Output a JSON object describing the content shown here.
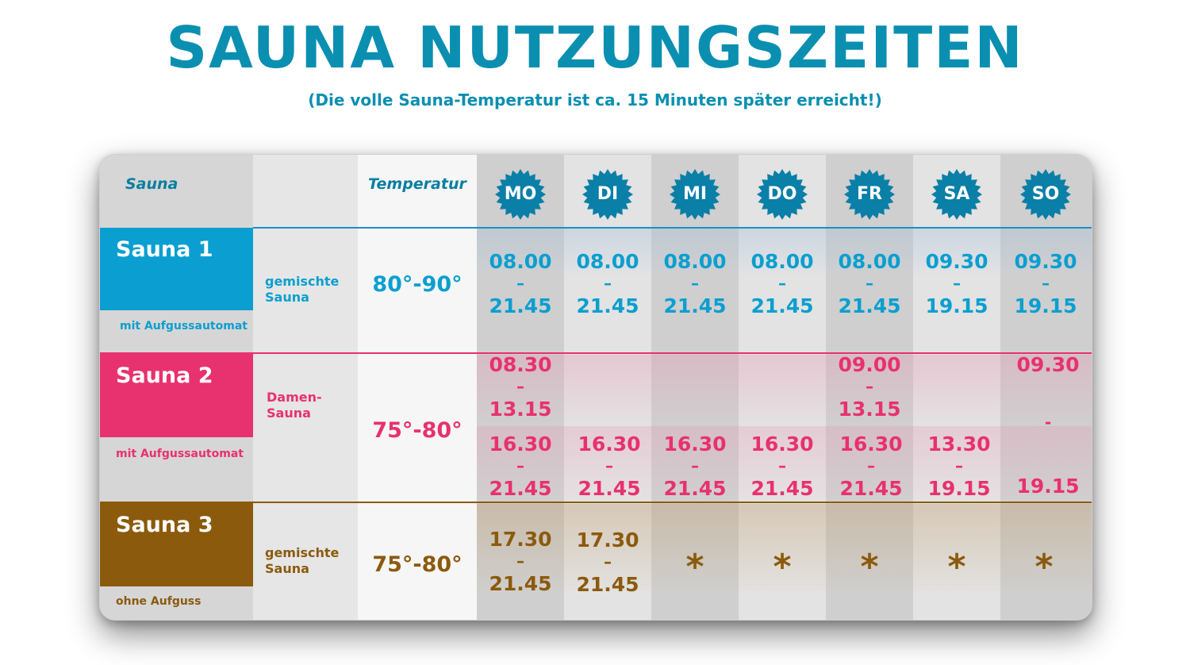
{
  "title": "SAUNA NUTZUNGSZEITEN",
  "subtitle": "(Die volle Sauna-Temperatur ist ca. 15 Minuten später erreicht!)",
  "header": {
    "sauna_label": "Sauna",
    "temperature_label": "Temperatur"
  },
  "days": [
    "MO",
    "DI",
    "MI",
    "DO",
    "FR",
    "SA",
    "SO"
  ],
  "colors": {
    "blue": "#0a9fd0",
    "pink": "#e8316f",
    "brown": "#8b5a0c",
    "title": "#0a8fb0"
  },
  "separator": "–",
  "saunas": [
    {
      "name": "Sauna 1",
      "note": "mit Aufgussautomat",
      "type_line1": "gemischte",
      "type_line2": "Sauna",
      "temperature": "80°-90°",
      "times": [
        {
          "from": "08.00",
          "to": "21.45"
        },
        {
          "from": "08.00",
          "to": "21.45"
        },
        {
          "from": "08.00",
          "to": "21.45"
        },
        {
          "from": "08.00",
          "to": "21.45"
        },
        {
          "from": "08.00",
          "to": "21.45"
        },
        {
          "from": "09.30",
          "to": "19.15"
        },
        {
          "from": "09.30",
          "to": "19.15"
        }
      ]
    },
    {
      "name": "Sauna 2",
      "note": "mit Aufgussautomat",
      "type_line1": "Damen-",
      "type_line2": "Sauna",
      "temperature": "75°-80°",
      "morning": [
        {
          "from": "08.30",
          "to": "13.15"
        },
        {
          "from": "09.00",
          "to": "13.15"
        },
        {
          "from": "09.30"
        }
      ],
      "evening": [
        {
          "from": "16.30",
          "to": "21.45"
        },
        {
          "from": "16.30",
          "to": "21.45"
        },
        {
          "from": "16.30",
          "to": "21.45"
        },
        {
          "from": "16.30",
          "to": "21.45"
        },
        {
          "from": "16.30",
          "to": "21.45"
        },
        {
          "from": "13.30",
          "to": "19.15"
        },
        {
          "to": "19.15"
        }
      ],
      "sunday_dash": "-"
    },
    {
      "name": "Sauna 3",
      "note": "ohne Aufguss",
      "type_line1": "gemischte",
      "type_line2": "Sauna",
      "temperature": "75°-80°",
      "times": [
        {
          "from": "17.30",
          "to": "21.45"
        },
        {
          "from": "17.30",
          "to": "21.45"
        }
      ],
      "closed_mark": "*"
    }
  ]
}
